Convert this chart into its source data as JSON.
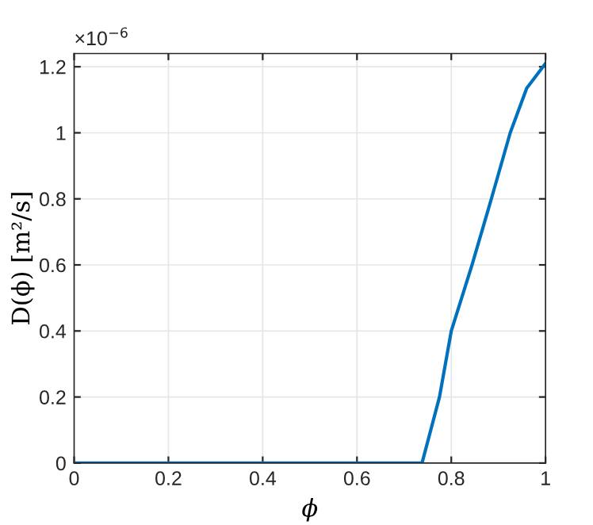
{
  "chart_data": {
    "type": "line",
    "xlabel": "ϕ",
    "ylabel": "D(ϕ) [m²/s]",
    "annotations": [
      "×10$^{−6}$"
    ],
    "x": [
      0,
      0.738,
      0.775,
      0.8,
      0.844,
      0.885,
      0.925,
      0.96,
      1.0
    ],
    "series": [
      {
        "color": "#0072bd",
        "values": [
          0,
          0,
          0.2,
          0.4,
          0.6,
          0.8,
          1.0,
          1.135,
          1.21
        ]
      }
    ],
    "xlim": [
      0,
      1
    ],
    "ylim": [
      0,
      1.24
    ],
    "xticks": [
      0,
      0.2,
      0.4,
      0.6,
      0.8,
      1
    ],
    "yticks": [
      0,
      0.2,
      0.4,
      0.6,
      0.8,
      1,
      1.2
    ],
    "grid": true,
    "legend": false,
    "marker": "none",
    "line_style": "solid"
  }
}
